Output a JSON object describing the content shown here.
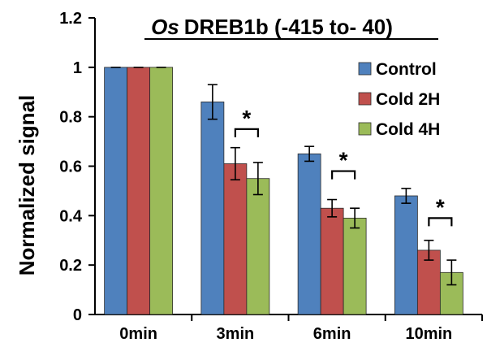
{
  "chart_data": {
    "type": "bar",
    "title_prefix": "Os",
    "title_rest": "DREB1b (-415 to- 40)",
    "xlabel": "",
    "ylabel": "Normalized signal",
    "ylim": [
      0,
      1.2
    ],
    "yticks": [
      0,
      0.2,
      0.4,
      0.6,
      0.8,
      1,
      1.2
    ],
    "ytick_labels": [
      "0",
      "0.2",
      "0.4",
      "0.6",
      "0.8",
      "1",
      "1.2"
    ],
    "categories": [
      "0min",
      "3min",
      "6min",
      "10min"
    ],
    "grid": false,
    "legend_position": "right",
    "series": [
      {
        "name": "Control",
        "color": "#4F81BD",
        "values": [
          1.0,
          0.86,
          0.65,
          0.48
        ],
        "errors": [
          0.0,
          0.07,
          0.03,
          0.03
        ]
      },
      {
        "name": "Cold 2H",
        "color": "#C0504D",
        "values": [
          1.0,
          0.61,
          0.43,
          0.26
        ],
        "errors": [
          0.0,
          0.065,
          0.035,
          0.04
        ]
      },
      {
        "name": "Cold 4H",
        "color": "#9BBB59",
        "values": [
          1.0,
          0.55,
          0.39,
          0.17
        ],
        "errors": [
          0.0,
          0.065,
          0.04,
          0.05
        ]
      }
    ],
    "annotations": [
      {
        "text": "*",
        "category": "3min",
        "y": 0.75
      },
      {
        "text": "*",
        "category": "6min",
        "y": 0.58
      },
      {
        "text": "*",
        "category": "10min",
        "y": 0.39
      }
    ]
  }
}
